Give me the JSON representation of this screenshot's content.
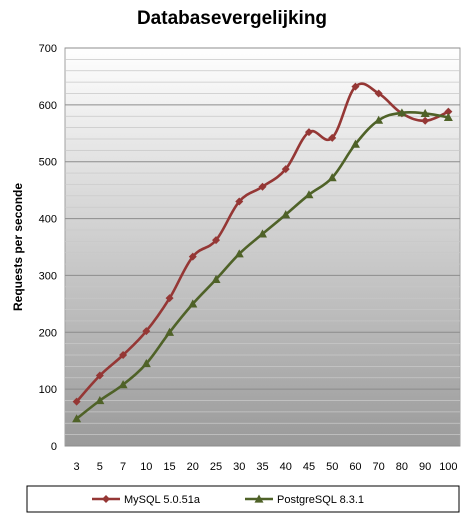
{
  "chart_data": {
    "type": "line",
    "title": "Databasevergelijking",
    "xlabel": "",
    "ylabel": "Requests per seconde",
    "categories": [
      "3",
      "5",
      "7",
      "10",
      "15",
      "20",
      "25",
      "30",
      "35",
      "40",
      "45",
      "50",
      "60",
      "70",
      "80",
      "90",
      "100"
    ],
    "ylim": [
      0,
      700
    ],
    "yticks": [
      0,
      100,
      200,
      300,
      400,
      500,
      600,
      700
    ],
    "grid": true,
    "legend_position": "bottom",
    "series": [
      {
        "name": "MySQL 5.0.51a",
        "color": "#953735",
        "marker": "diamond",
        "values": [
          78,
          124,
          160,
          202,
          260,
          333,
          362,
          430,
          456,
          487,
          552,
          542,
          632,
          620,
          585,
          572,
          588
        ]
      },
      {
        "name": "PostgreSQL 8.3.1",
        "color": "#4f6228",
        "marker": "triangle",
        "values": [
          48,
          80,
          108,
          145,
          200,
          250,
          293,
          338,
          373,
          407,
          442,
          472,
          531,
          573,
          586,
          585,
          578
        ]
      }
    ]
  }
}
